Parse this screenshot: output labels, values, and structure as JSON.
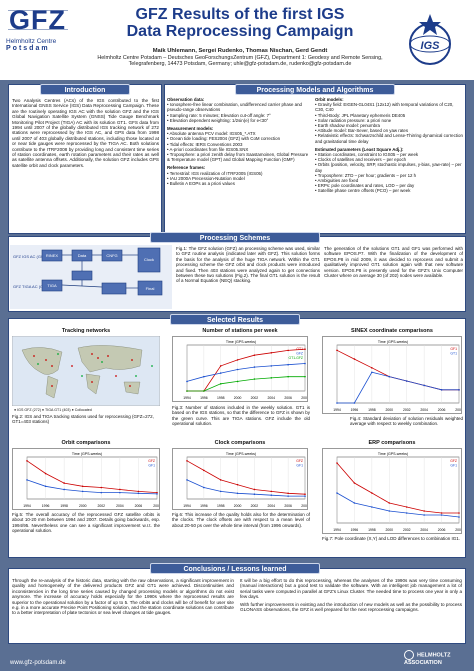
{
  "header": {
    "logo_text": "GFZ",
    "logo_sub1": "Helmholtz Centre",
    "logo_sub2": "Potsdam",
    "title_line1": "GFZ Results of the first IGS",
    "title_line2": "Data Reprocessing Campaign",
    "authors": "Maik Uhlemann, Sergei Rudenko, Thomas Nischan, Gerd Gendt",
    "affil1": "Helmholtz Centre Potsdam – Deutsches GeoForschungsZentrum (GFZ), Department 1: Geodesy and Remote Sensing,",
    "affil2": "Telegrafenberg, 14473 Potsdam, Germany; uhle@gfz-potsdam.de, rudenko@gfz-potsdam.de",
    "igs_logo": "IGS"
  },
  "sections": {
    "intro": "Introduction",
    "processing": "Processing Models and Algorithms",
    "schemes": "Processing Schemes",
    "selected": "Selected Results",
    "conclusions": "Conclusions / Lessons learned"
  },
  "intro_text": "Two Analysis Centres (ACs) of the IGS contributed to the first International GNSS Service (IGS) Data Reprocessing Campaign. These are the routinely operating IGS AC with the solution GFZ and the IGS Global Navigation Satellite System (GNSS) Tide Gauge Benchmark Monitoring Pilot Project (TIGA) AC with its solution GT1. GFS data from 1994 until 2007 of the globally distributed IGS tracking network of 272 stations were reprocessed by the IGS AC, and GPS data from 1998 until 2007 of 403 globally distributed stations, including those located at or near tide gauges were reprocessed by the TIGA AC. Both solutions contribute to the ITRF2008 by providing long and consistent time series of station coordinates, earth rotation parameters and their rates as well as satellite antenna offsets. Additionally, the solution GFZ includes GPS satellite orbit and clock parameters.",
  "processing": {
    "obs_head": "Observation data:",
    "obs_items": [
      "Ionosphere-free linear combination, undifferenced carrier phase and pseudo-range observations",
      "Sampling rate: 5 minutes; Elevation cut-off angle: 7°",
      "Elevation dependent weighting: 1/2sin(e) for e<30°"
    ],
    "meas_head": "Measurement models:",
    "meas_items": [
      "Absolute antenna PCV model: IGS05_*.ATX",
      "Ocean tide loading: FES2004 (GFZ) with CoM correction",
      "Tidal effects: IERS Conventions 2003",
      "A-priori coordinates from file IGS05.SNX",
      "Troposphere: a priori zenith delay from Saastamoinen, Global Pressure & Temperature model (GPT) and Global Mapping Function (GMF)"
    ],
    "ref_head": "Reference frames:",
    "ref_items": [
      "Terrestrial: IGS realization of ITRF2005 (IGS05)",
      "IAU 2000A Precession-Nutation model",
      "Bulletin A EOPs as a priori values"
    ],
    "orbit_head": "Orbit models:",
    "orbit_items": [
      "Gravity field: EIGEN-GL04S1 (12x12) with temporal variations of C20, C30, C40",
      "Third-Body: JPL Planetary ephemeris DE405",
      "Solar radiation pressure: a priori none",
      "Earth shadow model: penumbra",
      "Attitude model: Bar-Sever, based on yaw rates",
      "Relativistic effects: Schwarzschild and Lense-Thirring dynamical correction and gravitational time delay"
    ],
    "est_head": "Estimated parameters (Least Square Adj.):",
    "est_items": [
      "Station coordinates, constraint to IGS05 – per week",
      "Clocks of satellites and receivers – per epoch",
      "Orbits (position, velocity, SRP, stochastic impulses, y-bias, yaw-rate) – per day",
      "Troposphere: ZTD – per hour; gradients – per 12 h",
      "Ambiguities are fixed",
      "ERPs: pole coordinates and rates, LOD – per day",
      "Satellite phase centre offsets (PCO) – per week"
    ]
  },
  "scheme": {
    "left_labels": [
      "GFZ IGS AC (GFZ)",
      "GFZ TIGA AC (GT1)"
    ],
    "boxes": [
      "RINEX",
      "Data",
      "CNFG",
      "Clock",
      "TIGA",
      "Final"
    ],
    "caption": "Fig.1: The GFZ solution (GFZ) an processing scheme was used, similar to GFZ routine analysis (indicated later with GFZ). This solution forms the basis for the analysis of the huge TIGA network. Within the GT1 processing scheme the GFZ orbit and clock products were introduced and fixed. Then 403 stations were analyzed again to get connections between these two solutions (Fig.2). The final GT1 solution is the result of a Normal Equation (NEQ) stacking.",
    "right_text": "The generation of the solutions GT1 and GF1 was performed with software EPOS.P7. With the finalization of the development of EPOS.P8 in mid 2009, it was decided to reprocess and submit a qualitatively improved GT1 solution again with that new software version. EPOS.P8 is presently used for the GFZ's Unix Computer Cluster where on average 30 (of 202) nodes were available."
  },
  "results": {
    "p1_title": "Tracking networks",
    "p1_caption": "Fig.2: IGS and TIGA tracking stations used for reprocessing (GFZ=272, GT1=403 stations)",
    "p1_legend": [
      "IGS GFZ (272)",
      "TIGA GT1 (403)",
      "Collocated"
    ],
    "p2_title": "Number of stations per week",
    "p2_caption": "Fig.3: Number of stations included in the weekly solution. GT1 is based on the IGS stations, so that the difference to GFZ is shown by the green curve. This are TIGA stations. GFZ include the old operational solution.",
    "p3_title": "SINEX coordinate comparisons",
    "p3_caption": "Fig.4: Standard deviation of solution residuals weighted average with respect to weekly combination.",
    "p4_title": "Orbit comparisons",
    "p4_caption": "Fig.5: The overall accuracy of the reprocessed GFZ satellite orbits is about 10-20 mm between 1994 and 2007. Details going backwards, esp. 1994/95. Nevertheless one can see a significant improvement w.r.t. the operational solution.",
    "p5_title": "Clock comparisons",
    "p5_caption": "Fig.6: This increase of the quality holds also for the determination of the clocks. The clock offsets are with respect to a mean level of about 20-50 ps over the whole time interval (from 1996 onwards).",
    "p6_title": "ERP comparisons",
    "p6_caption": "Fig.7: Pole coordinate (X,Y) and LOD differences to combination IG1."
  },
  "conclusions": {
    "left": "Through the re-analysis of the historic data, starting with the raw observations, a significant improvement in quality and homogeneity of the delivered products GFZ and GT1 were achieved. Discontinuities and inconsistencies in the long time series caused by changed processing models or algorithms do not exist anymore. The increase of accuracy holds especially for the 1990s where the reprocessed results are superior to the operational solution by a factor of up to 5. The orbits and clocks will be of benefit for user site e.g. in a more accurate Precise Point Positioning solution, and the station coordinate solutions can contribute to a better interpretation of plate tectonics or sea level changes at tide gauges.",
    "right1": "It will be a big effort to do this reprocessing, whereas the analyses of the 1990s was very time consuming (manual interactions) but a good test to validate the software. With an intelligent job management a lot of serial tasks were computed in parallel at GFZ's Linux Cluster. The needed time to process one year in only a few days.",
    "right2": "With further improvements in existing and the introduction of new models as well as the possibility to process GLONASS observations, the GFZ is well prepared for the next reprocessing campaigns."
  },
  "footer": {
    "url": "www.gfz-potsdam.de",
    "helmholtz": "HELMHOLTZ ASSOCIATION"
  },
  "chart_data": [
    {
      "type": "line",
      "title": "Number of stations per week",
      "xlabel": "Time (GPS-weeks)",
      "ylabel": "",
      "x": [
        1994,
        1996,
        1998,
        2000,
        2002,
        2004,
        2006,
        2008
      ],
      "series": [
        {
          "name": "GT1",
          "values": [
            0,
            0,
            210,
            260,
            300,
            320,
            340,
            350
          ]
        },
        {
          "name": "GFZ",
          "values": [
            80,
            120,
            150,
            180,
            200,
            210,
            220,
            230
          ]
        },
        {
          "name": "GT1-GFZ",
          "values": [
            0,
            0,
            60,
            80,
            100,
            110,
            120,
            120
          ]
        }
      ]
    },
    {
      "type": "line",
      "title": "SINEX coordinate comparisons",
      "xlabel": "Time (GPS-weeks)",
      "ylabel": "",
      "x": [
        1994,
        1996,
        1998,
        2000,
        2002,
        2004,
        2006,
        2008
      ],
      "series": [
        {
          "name": "GF1",
          "values": [
            12,
            10,
            8,
            6,
            5,
            4,
            3,
            3
          ]
        },
        {
          "name": "GT1",
          "values": [
            0,
            0,
            7,
            6,
            5,
            4,
            3,
            3
          ]
        }
      ]
    },
    {
      "type": "line",
      "title": "Orbit comparisons",
      "xlabel": "Time (GPS-weeks)",
      "ylabel": "",
      "x": [
        1994,
        1996,
        1998,
        2000,
        2002,
        2004,
        2006,
        2008
      ],
      "series": [
        {
          "name": "GFZ",
          "values": [
            60,
            40,
            25,
            20,
            18,
            15,
            12,
            10
          ]
        },
        {
          "name": "GF1",
          "values": [
            30,
            20,
            15,
            12,
            10,
            10,
            9,
            8
          ]
        }
      ]
    },
    {
      "type": "line",
      "title": "Clock comparisons",
      "xlabel": "Time (GPS-weeks)",
      "ylabel": "",
      "x": [
        1994,
        1996,
        1998,
        2000,
        2002,
        2004,
        2006,
        2008
      ],
      "series": [
        {
          "name": "GFZ",
          "values": [
            400,
            300,
            200,
            150,
            100,
            80,
            60,
            50
          ]
        },
        {
          "name": "GF1",
          "values": [
            200,
            120,
            80,
            60,
            50,
            40,
            30,
            30
          ]
        }
      ]
    },
    {
      "type": "line",
      "title": "ERP comparisons",
      "xlabel": "Time (GPS-weeks)",
      "ylabel": "",
      "x": [
        1994,
        1996,
        1998,
        2000,
        2002,
        2004,
        2006,
        2008
      ],
      "series": [
        {
          "name": "GFZ",
          "values": [
            0.3,
            0.2,
            0.15,
            0.1,
            0.08,
            0.06,
            0.05,
            0.05
          ]
        },
        {
          "name": "GF1",
          "values": [
            0.15,
            0.1,
            0.08,
            0.06,
            0.05,
            0.04,
            0.04,
            0.03
          ]
        }
      ]
    }
  ]
}
